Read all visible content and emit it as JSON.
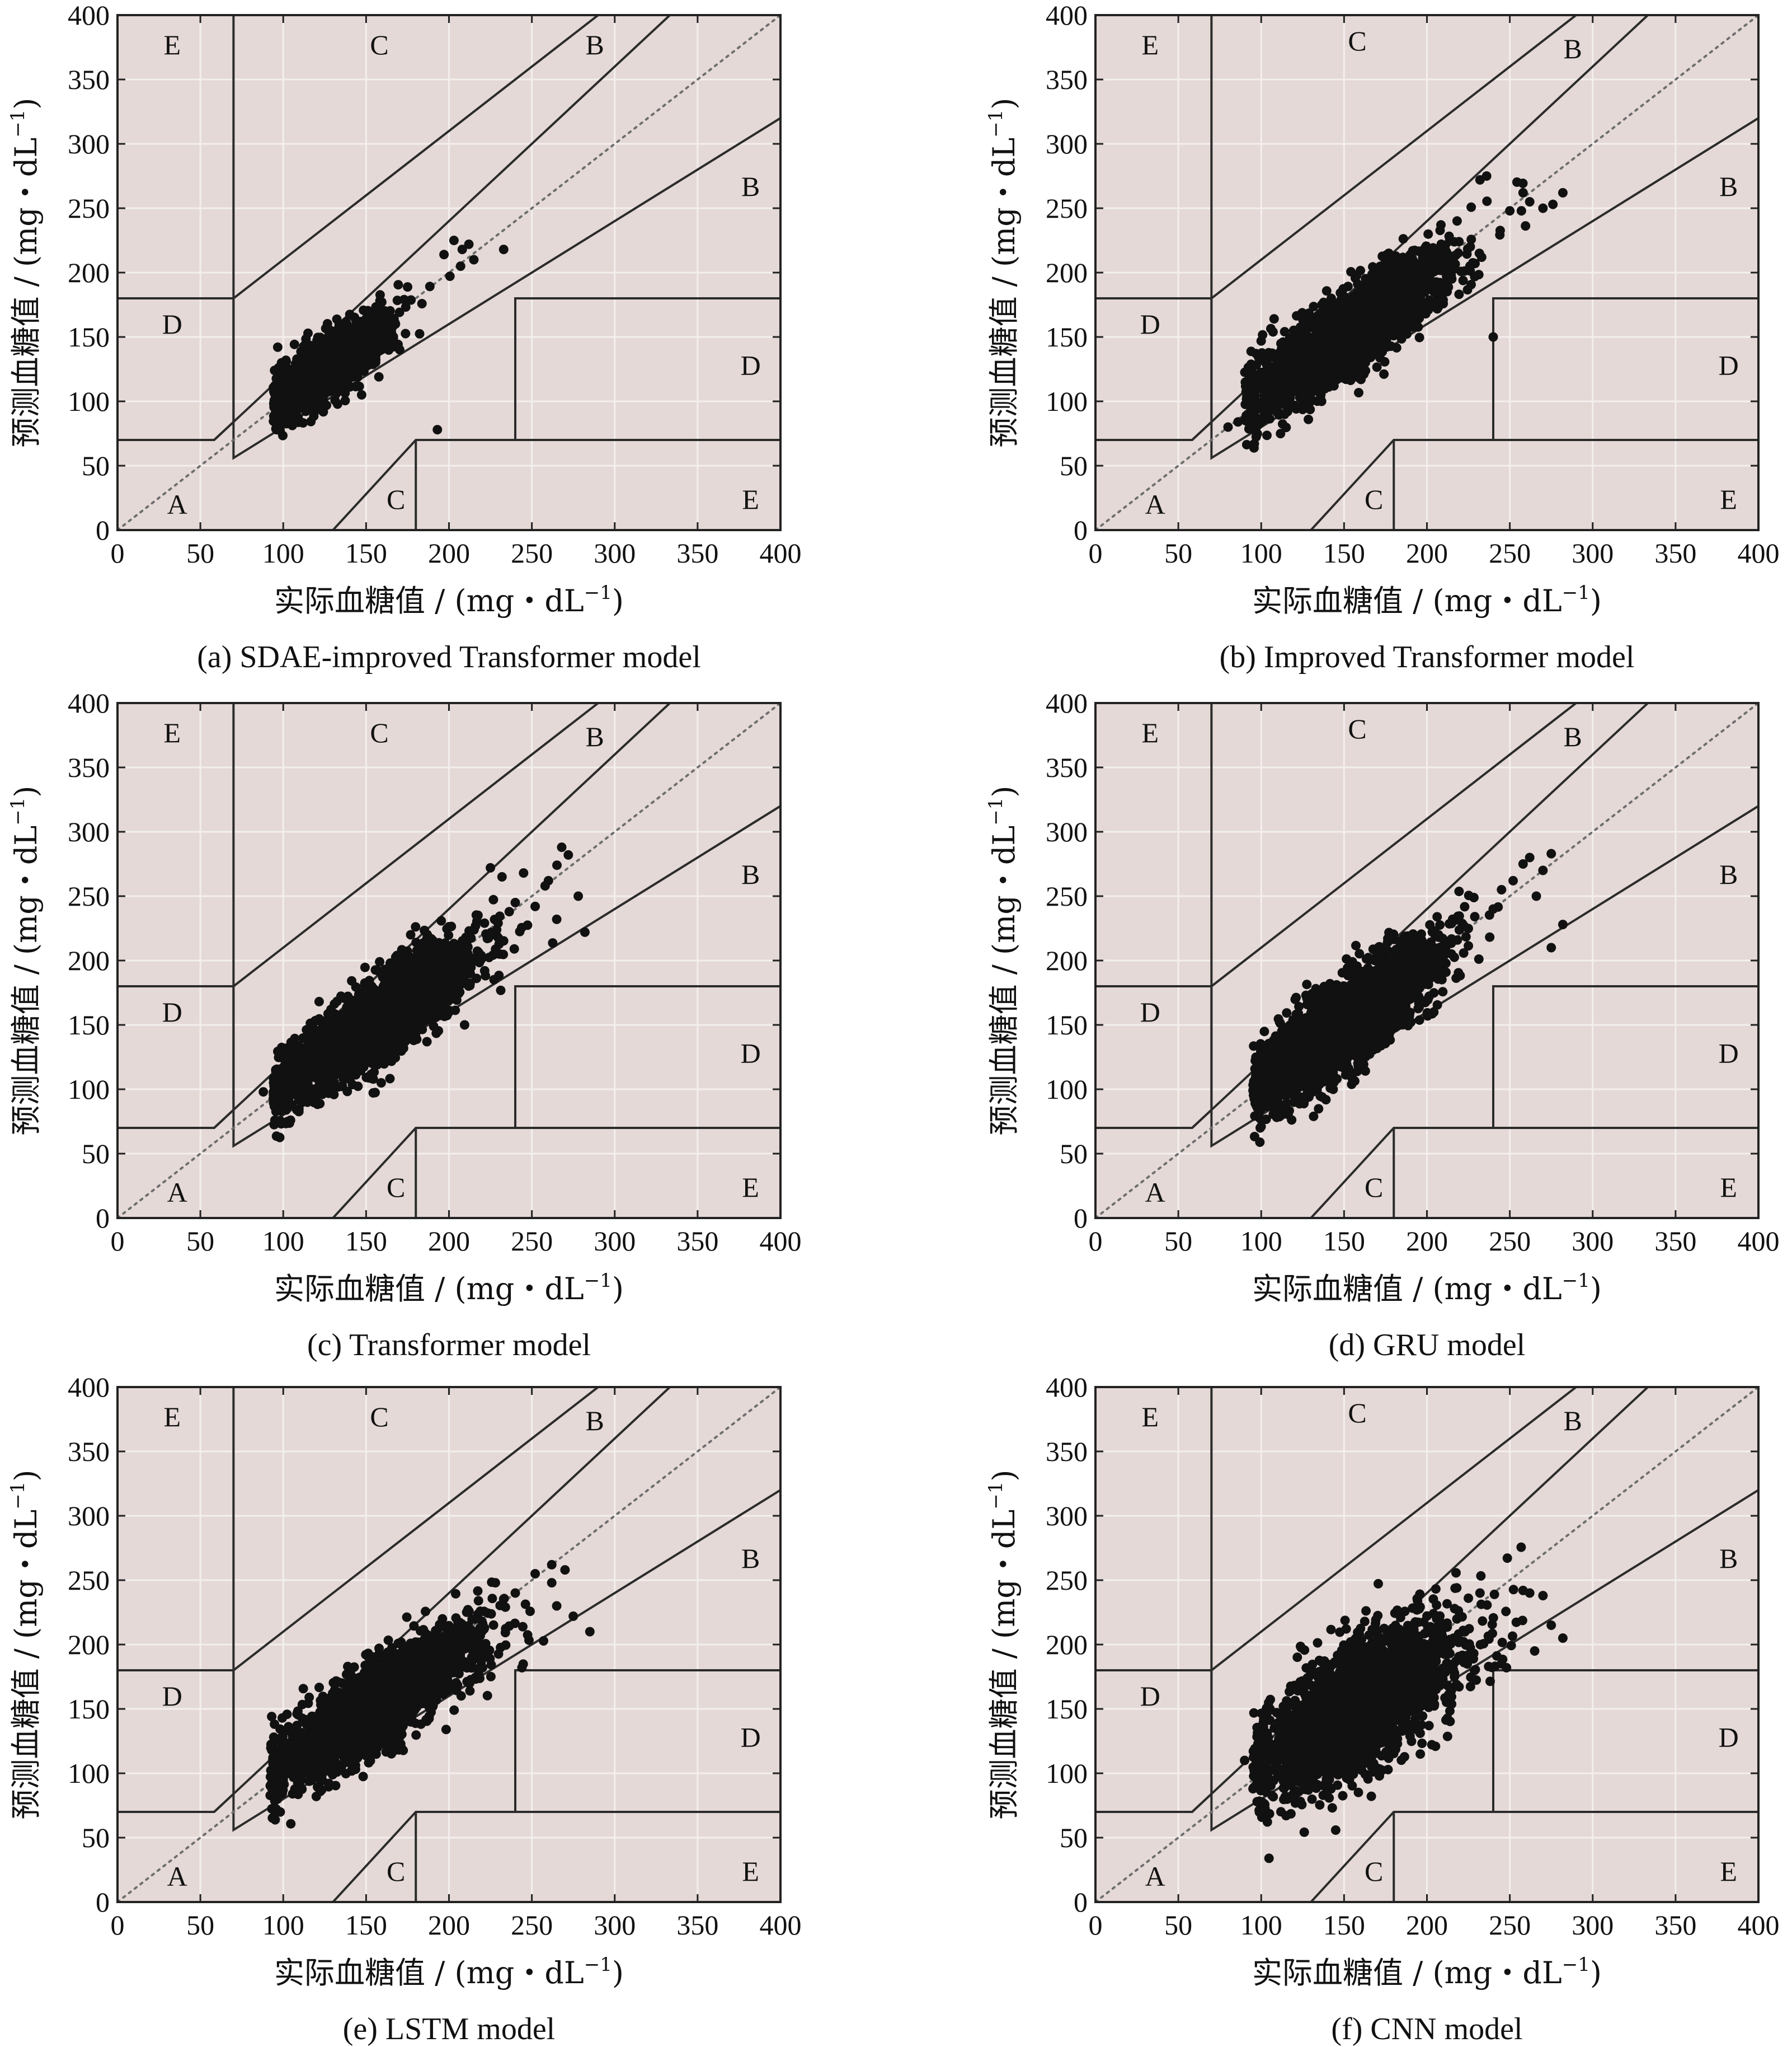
{
  "figure": {
    "colors": {
      "plot_background": "#e4d9d6",
      "grid": "#f3efee",
      "zone_lines": "#2b2b2b",
      "diagonal": "#6e6e6e",
      "points": "#111111"
    },
    "x_axis_label": {
      "main": "实际血糖值 / (mg・dL",
      "sup": "−1",
      "end": ")"
    },
    "y_axis_label": {
      "main": "预测血糖值 / (mg・dL",
      "sup": "−1",
      "end": ")"
    }
  },
  "chart_data": [
    {
      "type": "scatter",
      "caption": "(a) SDAE-improved Transformer model",
      "xlim": [
        0,
        400
      ],
      "ylim": [
        0,
        400
      ],
      "xticks": [
        "0",
        "50",
        "100",
        "150",
        "200",
        "250",
        "300",
        "350",
        "400"
      ],
      "yticks": [
        "0",
        "50",
        "100",
        "150",
        "200",
        "250",
        "300",
        "350",
        "400"
      ],
      "grid": true,
      "zone_labels": [
        {
          "text": "E",
          "x": 33,
          "y": 377
        },
        {
          "text": "C",
          "x": 158,
          "y": 377
        },
        {
          "text": "B",
          "x": 288,
          "y": 377
        },
        {
          "text": "B",
          "x": 382,
          "y": 267
        },
        {
          "text": "D",
          "x": 33,
          "y": 160
        },
        {
          "text": "D",
          "x": 382,
          "y": 128
        },
        {
          "text": "A",
          "x": 36,
          "y": 20
        },
        {
          "text": "C",
          "x": 168,
          "y": 24
        },
        {
          "text": "E",
          "x": 382,
          "y": 24
        }
      ],
      "cloud": {
        "count": 1400,
        "x_mean": 126,
        "x_sd": 20,
        "x_min": 94,
        "x_max": 222,
        "slope": 0.85,
        "intercept": 19,
        "resid_sd": 12
      },
      "extra_points": [
        [
          212,
          222
        ],
        [
          203,
          225
        ],
        [
          233,
          218
        ],
        [
          208,
          218
        ],
        [
          197,
          214
        ],
        [
          215,
          210
        ],
        [
          193,
          78
        ],
        [
          207,
          205
        ],
        [
          96,
          78
        ]
      ]
    },
    {
      "type": "scatter",
      "caption": "(b) Improved Transformer model",
      "xlim": [
        0,
        400
      ],
      "ylim": [
        0,
        400
      ],
      "xticks": [
        "0",
        "50",
        "100",
        "150",
        "200",
        "250",
        "300",
        "350",
        "400"
      ],
      "yticks": [
        "0",
        "50",
        "100",
        "150",
        "200",
        "250",
        "300",
        "350",
        "400"
      ],
      "grid": true,
      "zone_labels": [
        {
          "text": "E",
          "x": 33,
          "y": 377
        },
        {
          "text": "C",
          "x": 158,
          "y": 380
        },
        {
          "text": "B",
          "x": 288,
          "y": 374
        },
        {
          "text": "B",
          "x": 382,
          "y": 267
        },
        {
          "text": "D",
          "x": 33,
          "y": 160
        },
        {
          "text": "D",
          "x": 382,
          "y": 128
        },
        {
          "text": "A",
          "x": 36,
          "y": 20
        },
        {
          "text": "C",
          "x": 168,
          "y": 24
        },
        {
          "text": "E",
          "x": 382,
          "y": 24
        }
      ],
      "cloud": {
        "count": 2200,
        "x_mean": 152,
        "x_sd": 30,
        "x_min": 90,
        "x_max": 262,
        "slope": 0.9,
        "intercept": 15,
        "resid_sd": 16
      },
      "extra_points": [
        [
          232,
          272
        ],
        [
          236,
          275
        ],
        [
          258,
          262
        ],
        [
          270,
          250
        ],
        [
          282,
          262
        ],
        [
          276,
          253
        ],
        [
          262,
          255
        ],
        [
          250,
          248
        ],
        [
          80,
          80
        ],
        [
          86,
          84
        ],
        [
          240,
          150
        ],
        [
          92,
          100
        ],
        [
          257,
          248
        ]
      ]
    },
    {
      "type": "scatter",
      "caption": "(c) Transformer model",
      "xlim": [
        0,
        400
      ],
      "ylim": [
        0,
        400
      ],
      "xticks": [
        "0",
        "50",
        "100",
        "150",
        "200",
        "250",
        "300",
        "350",
        "400"
      ],
      "yticks": [
        "0",
        "50",
        "100",
        "150",
        "200",
        "250",
        "300",
        "350",
        "400"
      ],
      "grid": true,
      "zone_labels": [
        {
          "text": "E",
          "x": 33,
          "y": 377
        },
        {
          "text": "C",
          "x": 158,
          "y": 377
        },
        {
          "text": "B",
          "x": 288,
          "y": 374
        },
        {
          "text": "B",
          "x": 382,
          "y": 267
        },
        {
          "text": "D",
          "x": 33,
          "y": 160
        },
        {
          "text": "D",
          "x": 382,
          "y": 128
        },
        {
          "text": "A",
          "x": 36,
          "y": 20
        },
        {
          "text": "C",
          "x": 168,
          "y": 24
        },
        {
          "text": "E",
          "x": 382,
          "y": 24
        }
      ],
      "cloud": {
        "count": 2600,
        "x_mean": 155,
        "x_sd": 30,
        "x_min": 94,
        "x_max": 270,
        "slope": 0.85,
        "intercept": 20,
        "resid_sd": 16
      },
      "extra_points": [
        [
          225,
          272
        ],
        [
          232,
          265
        ],
        [
          245,
          268
        ],
        [
          260,
          262
        ],
        [
          268,
          288
        ],
        [
          272,
          282
        ],
        [
          278,
          250
        ],
        [
          282,
          222
        ],
        [
          265,
          232
        ],
        [
          252,
          242
        ],
        [
          240,
          245
        ],
        [
          88,
          98
        ],
        [
          258,
          258
        ]
      ]
    },
    {
      "type": "scatter",
      "caption": "(d) GRU model",
      "xlim": [
        0,
        400
      ],
      "ylim": [
        0,
        400
      ],
      "xticks": [
        "0",
        "50",
        "100",
        "150",
        "200",
        "250",
        "300",
        "350",
        "400"
      ],
      "yticks": [
        "0",
        "50",
        "100",
        "150",
        "200",
        "250",
        "300",
        "350",
        "400"
      ],
      "grid": true,
      "zone_labels": [
        {
          "text": "E",
          "x": 33,
          "y": 377
        },
        {
          "text": "C",
          "x": 158,
          "y": 380
        },
        {
          "text": "B",
          "x": 288,
          "y": 374
        },
        {
          "text": "B",
          "x": 382,
          "y": 267
        },
        {
          "text": "D",
          "x": 33,
          "y": 160
        },
        {
          "text": "D",
          "x": 382,
          "y": 128
        },
        {
          "text": "A",
          "x": 36,
          "y": 20
        },
        {
          "text": "C",
          "x": 168,
          "y": 24
        },
        {
          "text": "E",
          "x": 382,
          "y": 24
        }
      ],
      "cloud": {
        "count": 2500,
        "x_mean": 150,
        "x_sd": 28,
        "x_min": 95,
        "x_max": 262,
        "slope": 0.88,
        "intercept": 18,
        "resid_sd": 17
      },
      "extra_points": [
        [
          258,
          275
        ],
        [
          262,
          280
        ],
        [
          275,
          283
        ],
        [
          270,
          270
        ],
        [
          252,
          262
        ],
        [
          282,
          228
        ],
        [
          275,
          210
        ],
        [
          240,
          240
        ],
        [
          245,
          255
        ],
        [
          98,
          100
        ],
        [
          266,
          250
        ]
      ]
    },
    {
      "type": "scatter",
      "caption": "(e) LSTM model",
      "xlim": [
        0,
        400
      ],
      "ylim": [
        0,
        400
      ],
      "xticks": [
        "0",
        "50",
        "100",
        "150",
        "200",
        "250",
        "300",
        "350",
        "400"
      ],
      "yticks": [
        "0",
        "50",
        "100",
        "150",
        "200",
        "250",
        "300",
        "350",
        "400"
      ],
      "grid": true,
      "zone_labels": [
        {
          "text": "E",
          "x": 33,
          "y": 377
        },
        {
          "text": "C",
          "x": 158,
          "y": 377
        },
        {
          "text": "B",
          "x": 288,
          "y": 374
        },
        {
          "text": "B",
          "x": 382,
          "y": 267
        },
        {
          "text": "D",
          "x": 33,
          "y": 160
        },
        {
          "text": "D",
          "x": 382,
          "y": 128
        },
        {
          "text": "A",
          "x": 36,
          "y": 20
        },
        {
          "text": "C",
          "x": 168,
          "y": 24
        },
        {
          "text": "E",
          "x": 382,
          "y": 24
        }
      ],
      "cloud": {
        "count": 2600,
        "x_mean": 155,
        "x_sd": 30,
        "x_min": 92,
        "x_max": 262,
        "slope": 0.82,
        "intercept": 25,
        "resid_sd": 16
      },
      "extra_points": [
        [
          252,
          255
        ],
        [
          262,
          262
        ],
        [
          270,
          258
        ],
        [
          275,
          222
        ],
        [
          285,
          210
        ],
        [
          262,
          248
        ],
        [
          240,
          240
        ],
        [
          228,
          248
        ],
        [
          100,
          95
        ],
        [
          95,
          98
        ],
        [
          244,
          182
        ],
        [
          265,
          230
        ]
      ]
    },
    {
      "type": "scatter",
      "caption": "(f) CNN model",
      "xlim": [
        0,
        400
      ],
      "ylim": [
        0,
        400
      ],
      "xticks": [
        "0",
        "50",
        "100",
        "150",
        "200",
        "250",
        "300",
        "350",
        "400"
      ],
      "yticks": [
        "0",
        "50",
        "100",
        "150",
        "200",
        "250",
        "300",
        "350",
        "400"
      ],
      "grid": true,
      "zone_labels": [
        {
          "text": "E",
          "x": 33,
          "y": 377
        },
        {
          "text": "C",
          "x": 158,
          "y": 380
        },
        {
          "text": "B",
          "x": 288,
          "y": 374
        },
        {
          "text": "B",
          "x": 382,
          "y": 267
        },
        {
          "text": "D",
          "x": 33,
          "y": 160
        },
        {
          "text": "D",
          "x": 382,
          "y": 128
        },
        {
          "text": "A",
          "x": 36,
          "y": 20
        },
        {
          "text": "C",
          "x": 168,
          "y": 24
        },
        {
          "text": "E",
          "x": 382,
          "y": 24
        }
      ],
      "cloud": {
        "count": 2400,
        "x_mean": 160,
        "x_sd": 30,
        "x_min": 95,
        "x_max": 262,
        "slope": 0.75,
        "intercept": 32,
        "resid_sd": 24
      },
      "extra_points": [
        [
          258,
          242
        ],
        [
          262,
          240
        ],
        [
          270,
          238
        ],
        [
          282,
          205
        ],
        [
          265,
          195
        ],
        [
          245,
          185
        ],
        [
          232,
          240
        ],
        [
          225,
          236
        ],
        [
          98,
          108
        ],
        [
          90,
          110
        ],
        [
          275,
          215
        ],
        [
          248,
          182
        ],
        [
          218,
          244
        ]
      ]
    }
  ]
}
